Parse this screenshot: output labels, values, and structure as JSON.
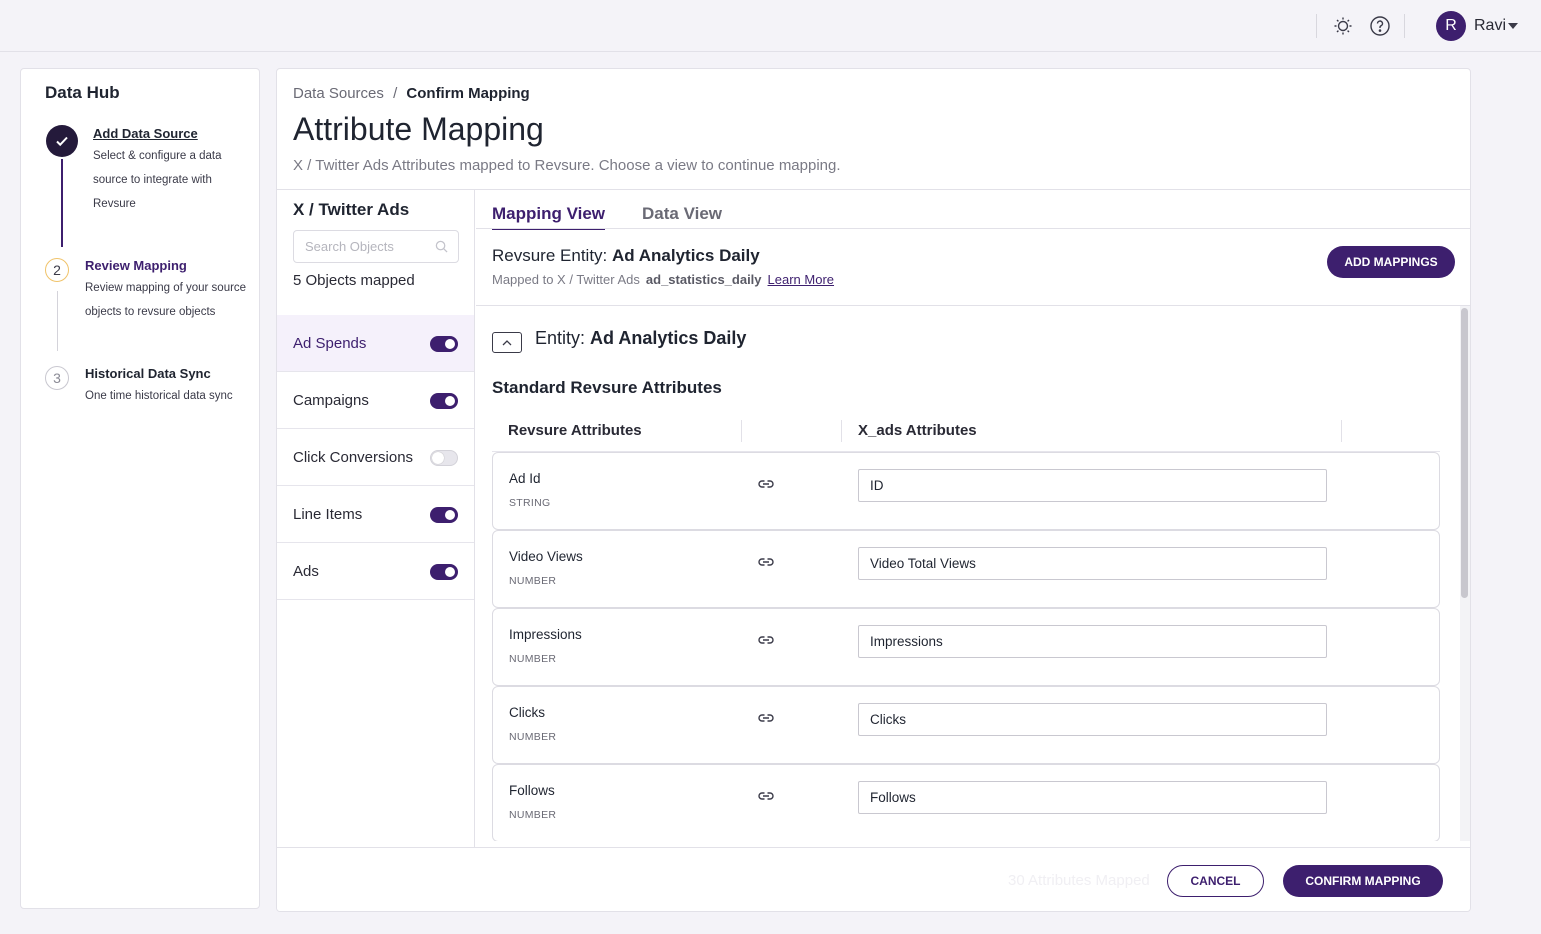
{
  "topbar": {
    "icons": [
      "lightbulb-icon",
      "help-icon"
    ],
    "user": {
      "initial": "R",
      "name": "Ravi"
    }
  },
  "stepper": {
    "title": "Data Hub",
    "steps": [
      {
        "number": "",
        "title": "Add Data Source",
        "description": "Select & configure a data source to integrate with Revsure",
        "state": "done"
      },
      {
        "number": "2",
        "title": "Review Mapping",
        "description": "Review mapping of your source objects to revsure objects",
        "state": "active"
      },
      {
        "number": "3",
        "title": "Historical Data Sync",
        "description": "One time historical data sync",
        "state": "pending"
      }
    ]
  },
  "header": {
    "breadcrumb_parent": "Data Sources",
    "breadcrumb_sep": "/",
    "breadcrumb_current": "Confirm Mapping",
    "title": "Attribute Mapping",
    "subtitle": "X / Twitter Ads Attributes mapped to Revsure. Choose a view to continue mapping."
  },
  "objects": {
    "title": "X / Twitter Ads",
    "search_placeholder": "Search Objects",
    "count_text": "5 Objects mapped",
    "items": [
      {
        "label": "Ad Spends",
        "enabled": true,
        "selected": true
      },
      {
        "label": "Campaigns",
        "enabled": true,
        "selected": false
      },
      {
        "label": "Click Conversions",
        "enabled": false,
        "selected": false
      },
      {
        "label": "Line Items",
        "enabled": true,
        "selected": false
      },
      {
        "label": "Ads",
        "enabled": true,
        "selected": false
      }
    ]
  },
  "tabs": {
    "mapping": "Mapping View",
    "data": "Data View"
  },
  "entity": {
    "prefix": "Revsure Entity:",
    "name": "Ad Analytics Daily",
    "mapped_to": "Mapped to X / Twitter Ads",
    "table": "ad_statistics_daily",
    "learn_more": "Learn More",
    "add_button": "ADD MAPPINGS",
    "section_prefix": "Entity:",
    "section_name": "Ad Analytics Daily",
    "standard_heading": "Standard Revsure Attributes"
  },
  "columns": {
    "revsure": "Revsure Attributes",
    "source": "X_ads Attributes"
  },
  "attributes": [
    {
      "name": "Ad Id",
      "type": "STRING",
      "mapped": "ID"
    },
    {
      "name": "Video Views",
      "type": "NUMBER",
      "mapped": "Video Total Views"
    },
    {
      "name": "Impressions",
      "type": "NUMBER",
      "mapped": "Impressions"
    },
    {
      "name": "Clicks",
      "type": "NUMBER",
      "mapped": "Clicks"
    },
    {
      "name": "Follows",
      "type": "NUMBER",
      "mapped": "Follows"
    }
  ],
  "footer": {
    "status": "30 Attributes Mapped",
    "cancel": "CANCEL",
    "confirm": "CONFIRM MAPPING"
  },
  "colors": {
    "primary": "#3d1f6e",
    "step_active_ring": "#f0c36a"
  }
}
